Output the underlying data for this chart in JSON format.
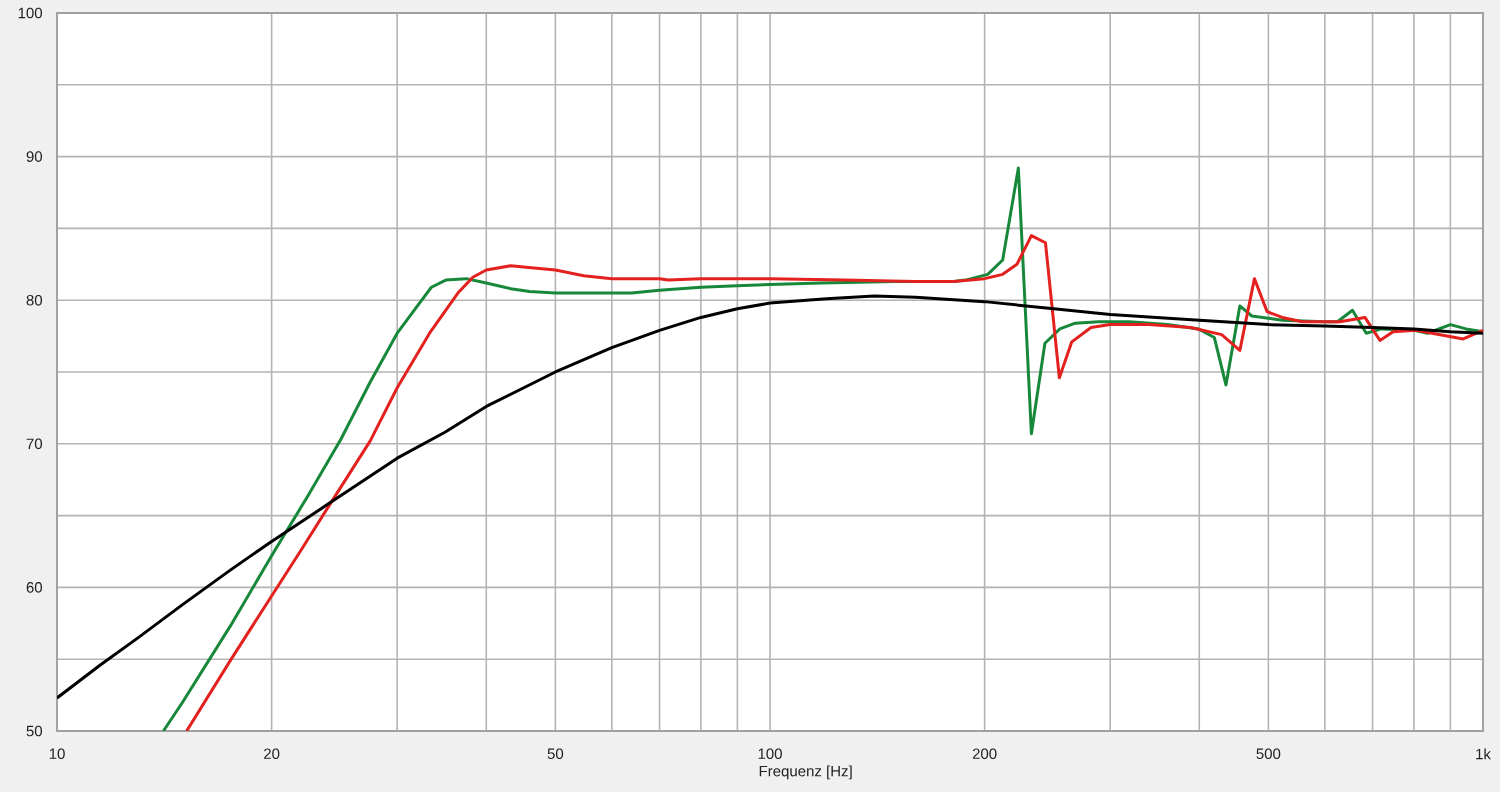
{
  "chart_data": {
    "type": "line",
    "xlabel": "Frequenz [Hz]",
    "log": "x",
    "xlim": [
      10,
      1000
    ],
    "ylim": [
      50,
      100
    ],
    "xticks": [
      10,
      20,
      {
        "value": 30,
        "label": null
      },
      {
        "value": 40,
        "label": null
      },
      50,
      {
        "value": 60,
        "label": null
      },
      {
        "value": 70,
        "label": null
      },
      {
        "value": 80,
        "label": null
      },
      {
        "value": 90,
        "label": null
      },
      100,
      200,
      {
        "value": 300,
        "label": null
      },
      {
        "value": 400,
        "label": null
      },
      500,
      {
        "value": 600,
        "label": null
      },
      {
        "value": 700,
        "label": null
      },
      {
        "value": 800,
        "label": null
      },
      {
        "value": 900,
        "label": null
      },
      {
        "value": 1000,
        "label": "1k"
      }
    ],
    "yticks": [
      50,
      {
        "value": 55,
        "label": null
      },
      60,
      {
        "value": 65,
        "label": null
      },
      70,
      {
        "value": 75,
        "label": null
      },
      80,
      {
        "value": 85,
        "label": null
      },
      90,
      {
        "value": 95,
        "label": null
      },
      100
    ],
    "grid": true,
    "line_style": "solid",
    "series": [
      {
        "color": "#17883a",
        "x": [
          14.1,
          15,
          17.5,
          20,
          22.5,
          25,
          27.5,
          30,
          31.8,
          33.5,
          35.1,
          37.5,
          40,
          43.3,
          46,
          50,
          60,
          64,
          70,
          80,
          90,
          100,
          118,
          150,
          181,
          188,
          202,
          212,
          223,
          232.6,
          243,
          255,
          268,
          289,
          319,
          361,
          399,
          420,
          436,
          456,
          474,
          523,
          600,
          625,
          656,
          686,
          720,
          800,
          836,
          900,
          947,
          1000
        ],
        "values": [
          50,
          52.0,
          57.3,
          62.2,
          66.4,
          70.3,
          74.3,
          77.7,
          79.4,
          80.9,
          81.4,
          81.5,
          81.2,
          80.8,
          80.6,
          80.5,
          80.5,
          80.5,
          80.7,
          80.9,
          81.0,
          81.1,
          81.2,
          81.3,
          81.3,
          81.4,
          81.8,
          82.8,
          89.2,
          70.7,
          77.0,
          78.0,
          78.4,
          78.5,
          78.5,
          78.3,
          78.0,
          77.4,
          74.1,
          79.6,
          78.9,
          78.6,
          78.5,
          78.5,
          79.3,
          77.7,
          78.0,
          77.9,
          77.7,
          78.3,
          78.0,
          77.8
        ]
      },
      {
        "color": "#e3211f",
        "x": [
          15.2,
          17.5,
          20,
          22,
          24.15,
          27.5,
          30,
          33.4,
          36.5,
          38.3,
          40,
          43.3,
          45.5,
          50,
          54.8,
          60,
          70,
          72,
          80,
          100,
          127,
          160,
          181,
          200,
          212,
          222,
          232.6,
          243.4,
          254.6,
          265,
          282,
          300,
          340,
          389,
          430,
          456,
          478,
          498,
          523,
          558,
          630,
          683,
          717,
          748,
          805,
          938,
          1000
        ],
        "values": [
          50,
          54.9,
          59.4,
          62.6,
          65.8,
          70.2,
          73.9,
          77.8,
          80.5,
          81.6,
          82.1,
          82.4,
          82.3,
          82.1,
          81.7,
          81.5,
          81.5,
          81.4,
          81.5,
          81.5,
          81.4,
          81.3,
          81.3,
          81.5,
          81.8,
          82.5,
          84.5,
          84.0,
          74.6,
          77.1,
          78.1,
          78.3,
          78.3,
          78.1,
          77.6,
          76.5,
          81.5,
          79.2,
          78.8,
          78.5,
          78.5,
          78.8,
          77.2,
          77.8,
          77.9,
          77.3,
          77.9
        ]
      },
      {
        "color": "#000000",
        "x": [
          10,
          11.5,
          13,
          15,
          17.5,
          20,
          24,
          30,
          35,
          40,
          50,
          60,
          70,
          80,
          90,
          100,
          120,
          140,
          160,
          200,
          250,
          300,
          400,
          500,
          600,
          700,
          800,
          900,
          1000
        ],
        "values": [
          52.3,
          54.6,
          56.5,
          58.8,
          61.2,
          63.2,
          65.8,
          69.0,
          70.8,
          72.6,
          75.0,
          76.7,
          77.9,
          78.8,
          79.4,
          79.8,
          80.1,
          80.3,
          80.2,
          79.9,
          79.4,
          79.0,
          78.6,
          78.3,
          78.2,
          78.1,
          78.0,
          77.8,
          77.7
        ]
      }
    ]
  }
}
